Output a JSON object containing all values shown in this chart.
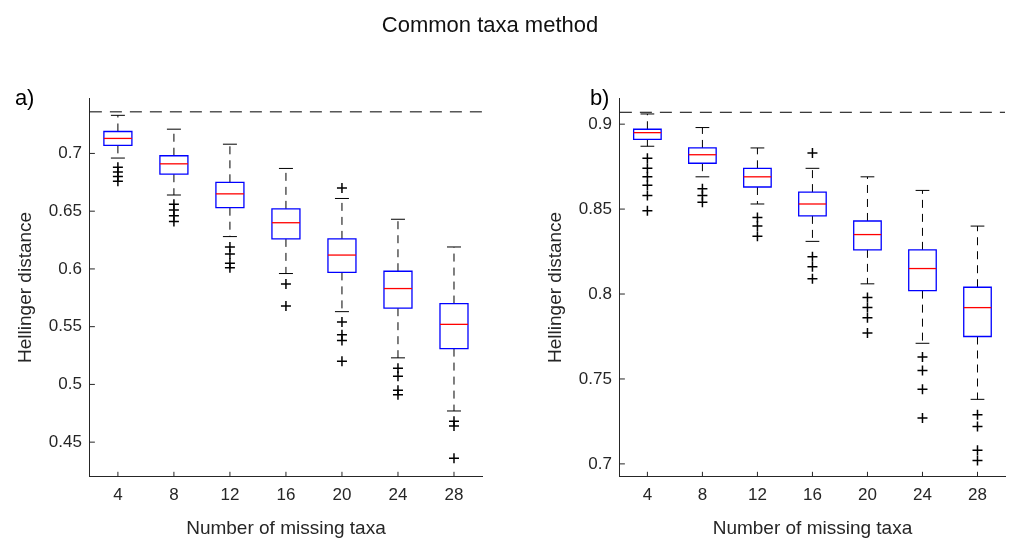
{
  "chart_data": [
    {
      "type": "box",
      "title": "Common taxa method",
      "annotations": [
        "a)"
      ],
      "xlabel": "Number of missing taxa",
      "ylabel": "Hellinger distance",
      "categories": [
        "4",
        "8",
        "12",
        "16",
        "20",
        "24",
        "28"
      ],
      "color": "#0000ff",
      "marker": "cross",
      "ylim": [
        0.42,
        0.748
      ],
      "yticks": [
        0.45,
        0.5,
        0.55,
        0.6,
        0.65,
        0.7
      ],
      "ref_lines": [
        {
          "axis": "y",
          "value": 0.736,
          "line_style": "dashed"
        }
      ],
      "boxes": [
        {
          "low": 0.696,
          "q1": 0.707,
          "median": 0.713,
          "q3": 0.719,
          "high": 0.733,
          "outliers": [
            0.688,
            0.684,
            0.68,
            0.676
          ]
        },
        {
          "low": 0.664,
          "q1": 0.682,
          "median": 0.691,
          "q3": 0.698,
          "high": 0.721,
          "outliers": [
            0.656,
            0.651,
            0.646,
            0.641
          ]
        },
        {
          "low": 0.628,
          "q1": 0.653,
          "median": 0.665,
          "q3": 0.675,
          "high": 0.708,
          "outliers": [
            0.619,
            0.613,
            0.605,
            0.601
          ]
        },
        {
          "low": 0.596,
          "q1": 0.626,
          "median": 0.64,
          "q3": 0.652,
          "high": 0.687,
          "outliers": [
            0.587,
            0.568
          ]
        },
        {
          "low": 0.563,
          "q1": 0.597,
          "median": 0.612,
          "q3": 0.626,
          "high": 0.661,
          "outliers": [
            0.67,
            0.554,
            0.543,
            0.538,
            0.52
          ]
        },
        {
          "low": 0.523,
          "q1": 0.566,
          "median": 0.583,
          "q3": 0.598,
          "high": 0.643,
          "outliers": [
            0.514,
            0.507,
            0.495,
            0.491
          ]
        },
        {
          "low": 0.477,
          "q1": 0.531,
          "median": 0.552,
          "q3": 0.57,
          "high": 0.619,
          "outliers": [
            0.468,
            0.464,
            0.436
          ]
        }
      ]
    },
    {
      "type": "box",
      "annotations": [
        "b)"
      ],
      "xlabel": "Number of missing taxa",
      "ylabel": "Hellinger distance",
      "categories": [
        "4",
        "8",
        "12",
        "16",
        "20",
        "24",
        "28"
      ],
      "color": "#0000ff",
      "marker": "cross",
      "ylim": [
        0.6924,
        0.9154
      ],
      "yticks": [
        0.7,
        0.75,
        0.8,
        0.85,
        0.9
      ],
      "ref_lines": [
        {
          "axis": "y",
          "value": 0.907,
          "line_style": "dashed"
        }
      ],
      "boxes": [
        {
          "low": 0.887,
          "q1": 0.891,
          "median": 0.895,
          "q3": 0.897,
          "high": 0.906,
          "outliers": [
            0.88,
            0.874,
            0.869,
            0.864,
            0.858,
            0.849
          ]
        },
        {
          "low": 0.869,
          "q1": 0.877,
          "median": 0.882,
          "q3": 0.886,
          "high": 0.898,
          "outliers": [
            0.862,
            0.858,
            0.854
          ]
        },
        {
          "low": 0.853,
          "q1": 0.863,
          "median": 0.869,
          "q3": 0.874,
          "high": 0.886,
          "outliers": [
            0.845,
            0.84,
            0.834
          ]
        },
        {
          "low": 0.831,
          "q1": 0.846,
          "median": 0.853,
          "q3": 0.86,
          "high": 0.874,
          "outliers": [
            0.883,
            0.822,
            0.816,
            0.809
          ]
        },
        {
          "low": 0.806,
          "q1": 0.826,
          "median": 0.835,
          "q3": 0.843,
          "high": 0.869,
          "outliers": [
            0.798,
            0.792,
            0.786,
            0.777
          ]
        },
        {
          "low": 0.771,
          "q1": 0.802,
          "median": 0.815,
          "q3": 0.826,
          "high": 0.861,
          "outliers": [
            0.763,
            0.755,
            0.744,
            0.727
          ]
        },
        {
          "low": 0.738,
          "q1": 0.775,
          "median": 0.792,
          "q3": 0.804,
          "high": 0.84,
          "outliers": [
            0.729,
            0.722,
            0.708,
            0.702
          ]
        }
      ]
    }
  ]
}
